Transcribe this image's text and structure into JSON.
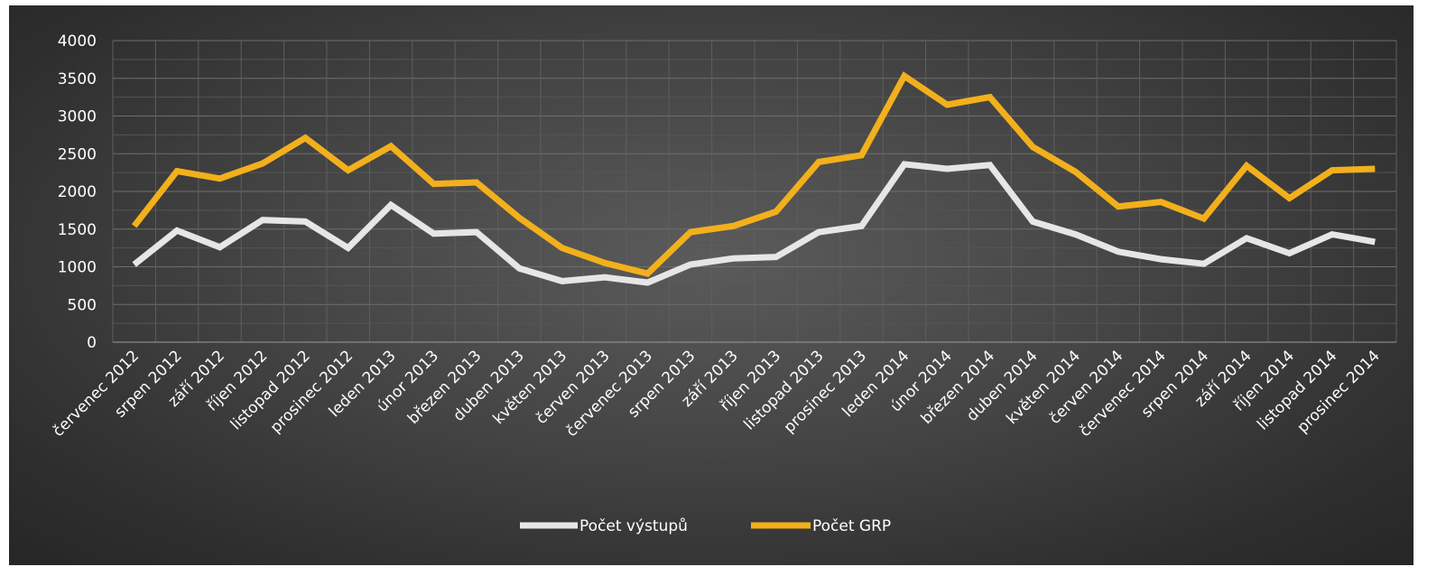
{
  "chart_data": {
    "type": "line",
    "title": "",
    "xlabel": "",
    "ylabel": "",
    "ylim": [
      0,
      4000
    ],
    "yticks": [
      0,
      500,
      1000,
      1500,
      2000,
      2500,
      3000,
      3500,
      4000
    ],
    "grid": true,
    "legend_position": "bottom",
    "background": "dark gradient",
    "categories": [
      "červenec 2012",
      "srpen 2012",
      "září 2012",
      "říjen 2012",
      "listopad 2012",
      "prosinec 2012",
      "leden 2013",
      "únor 2013",
      "březen 2013",
      "duben 2013",
      "květen 2013",
      "červen 2013",
      "červenec 2013",
      "srpen 2013",
      "září 2013",
      "říjen 2013",
      "listopad 2013",
      "prosinec 2013",
      "leden 2014",
      "únor 2014",
      "březen 2014",
      "duben 2014",
      "květen 2014",
      "červen 2014",
      "červenec 2014",
      "srpen 2014",
      "září 2014",
      "říjen 2014",
      "listopad 2014",
      "prosinec 2014"
    ],
    "series": [
      {
        "name": "Počet výstupů",
        "color": "#e6e6e6",
        "values": [
          1030,
          1480,
          1260,
          1620,
          1600,
          1250,
          1820,
          1440,
          1460,
          980,
          810,
          860,
          790,
          1030,
          1110,
          1130,
          1460,
          1540,
          2360,
          2300,
          2350,
          1600,
          1430,
          1200,
          1100,
          1040,
          1380,
          1180,
          1430,
          1330
        ]
      },
      {
        "name": "Počet GRP",
        "color": "#f2b01c",
        "values": [
          1540,
          2270,
          2170,
          2370,
          2710,
          2280,
          2600,
          2100,
          2120,
          1650,
          1250,
          1050,
          910,
          1460,
          1540,
          1730,
          2390,
          2480,
          3530,
          3150,
          3250,
          2590,
          2260,
          1800,
          1860,
          1640,
          2340,
          1910,
          2280,
          2300
        ]
      }
    ]
  }
}
